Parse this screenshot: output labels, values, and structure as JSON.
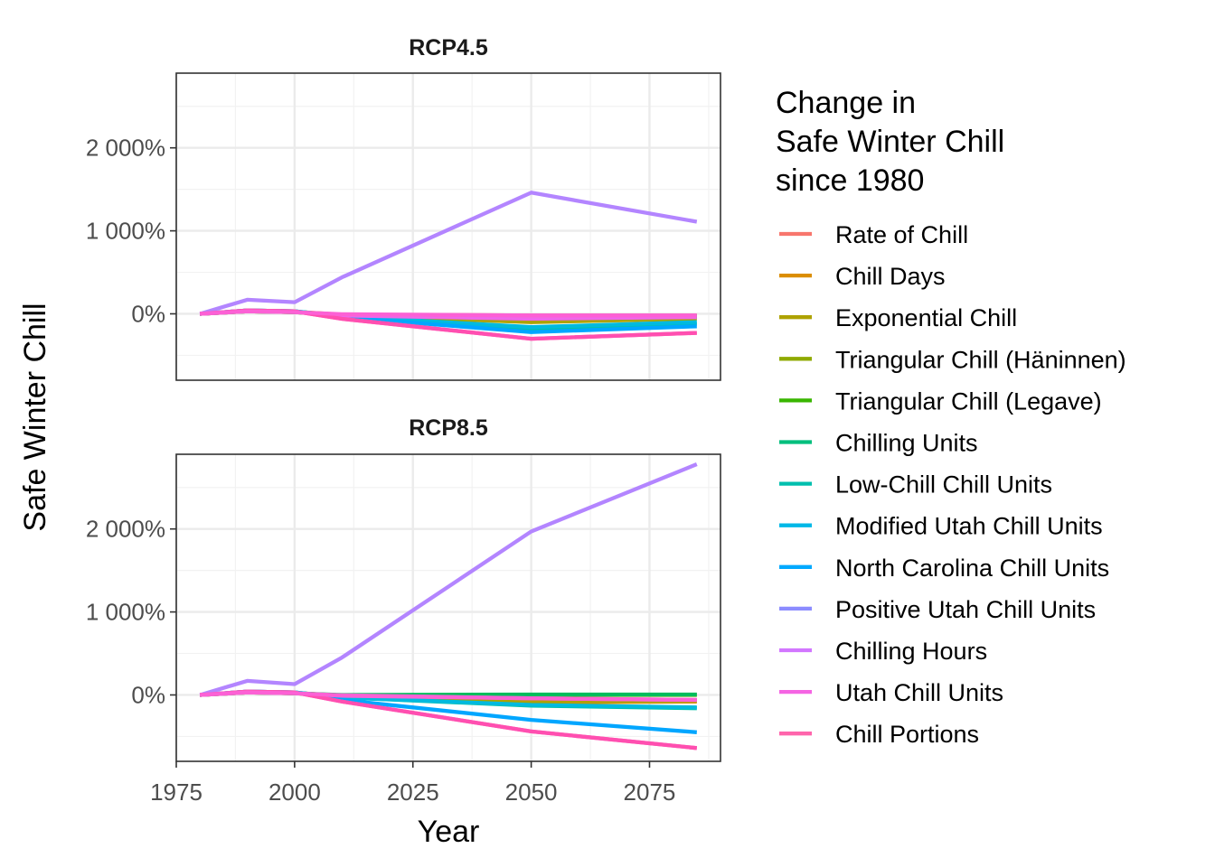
{
  "chart_data": {
    "type": "line",
    "ylabel": "Safe Winter Chill",
    "xlabel": "Year",
    "legend": {
      "title_lines": [
        "Change in",
        "Safe Winter Chill",
        "since 1980"
      ],
      "placement": "right"
    },
    "grid": true,
    "x_ticks": [
      1975,
      2000,
      2025,
      2050,
      2075
    ],
    "x_tick_labels": [
      "1975",
      "2000",
      "2025",
      "2050",
      "2075"
    ],
    "xlim": [
      1975,
      2090
    ],
    "y_ticks": [
      0,
      1000,
      2000
    ],
    "y_tick_labels": [
      "0%",
      "1 000%",
      "2 000%"
    ],
    "ylim": [
      -800,
      2900
    ],
    "x": [
      1980,
      1990,
      2000,
      2010,
      2050,
      2085
    ],
    "series_styles": [
      {
        "name": "Rate of Chill",
        "color": "#F8766D"
      },
      {
        "name": "Chill Days",
        "color": "#DB8E00"
      },
      {
        "name": "Exponential Chill",
        "color": "#AEA200"
      },
      {
        "name": "Triangular Chill (Häninnen)",
        "color": "#64B200"
      },
      {
        "name": "Triangular Chill (Legave)",
        "color": "#00BD5C"
      },
      {
        "name": "Chilling Units",
        "color": "#00C1A7"
      },
      {
        "name": "Low-Chill Chill Units",
        "color": "#00BADE"
      },
      {
        "name": "Modified Utah Chill Units",
        "color": "#00A6FF"
      },
      {
        "name": "North Carolina Chill Units",
        "color": "#B385FF"
      },
      {
        "name": "Positive Utah Chill Units",
        "color": "#EF67EB"
      },
      {
        "name": "Chilling Hours",
        "color": "#FF63B6"
      },
      {
        "name": "Utah Chill Units",
        "color": "#FF4FB0"
      },
      {
        "name": "Chill Portions",
        "color": "#FC61D5"
      }
    ],
    "legend_entries": [
      {
        "name": "Rate of Chill",
        "color": "#F8766D"
      },
      {
        "name": "Chill Days",
        "color": "#DB8E00"
      },
      {
        "name": "Exponential Chill",
        "color": "#AEA200"
      },
      {
        "name": "Triangular Chill (Häninnen)",
        "color": "#8FAA00"
      },
      {
        "name": "Triangular Chill (Legave)",
        "color": "#39B600"
      },
      {
        "name": "Chilling Units",
        "color": "#00BF7D"
      },
      {
        "name": "Low-Chill Chill Units",
        "color": "#00BFAE"
      },
      {
        "name": "Modified Utah Chill Units",
        "color": "#00B8E7"
      },
      {
        "name": "North Carolina Chill Units",
        "color": "#00A9FF"
      },
      {
        "name": "Positive Utah Chill Units",
        "color": "#8C8CFF"
      },
      {
        "name": "Chilling Hours",
        "color": "#D277FF"
      },
      {
        "name": "Utah Chill Units",
        "color": "#F564E3"
      },
      {
        "name": "Chill Portions",
        "color": "#FF65AC"
      }
    ],
    "panels": [
      {
        "label": "RCP4.5",
        "series": [
          {
            "name": "Rate of Chill",
            "values": [
              0,
              30,
              20,
              -10,
              -20,
              -20
            ]
          },
          {
            "name": "Chill Days",
            "values": [
              0,
              35,
              25,
              -10,
              -80,
              -40
            ]
          },
          {
            "name": "Exponential Chill",
            "values": [
              0,
              30,
              20,
              -20,
              -100,
              -60
            ]
          },
          {
            "name": "Triangular Chill (Häninnen)",
            "values": [
              0,
              30,
              20,
              -15,
              -60,
              -40
            ]
          },
          {
            "name": "Triangular Chill (Legave)",
            "values": [
              0,
              30,
              20,
              -15,
              -50,
              -30
            ]
          },
          {
            "name": "Chilling Units",
            "values": [
              0,
              40,
              30,
              -30,
              -180,
              -120
            ]
          },
          {
            "name": "Low-Chill Chill Units",
            "values": [
              0,
              40,
              30,
              -30,
              -160,
              -100
            ]
          },
          {
            "name": "Modified Utah Chill Units",
            "values": [
              0,
              40,
              30,
              -40,
              -220,
              -150
            ]
          },
          {
            "name": "North Carolina Chill Units",
            "values": [
              0,
              170,
              140,
              440,
              1460,
              1110
            ]
          },
          {
            "name": "Positive Utah Chill Units",
            "values": [
              0,
              30,
              20,
              -20,
              -60,
              -40
            ]
          },
          {
            "name": "Chilling Hours",
            "values": [
              0,
              40,
              30,
              -60,
              -300,
              -230
            ]
          },
          {
            "name": "Utah Chill Units",
            "values": [
              0,
              40,
              30,
              -60,
              -300,
              -230
            ]
          },
          {
            "name": "Chill Portions",
            "values": [
              0,
              30,
              20,
              -5,
              -20,
              -20
            ]
          }
        ]
      },
      {
        "label": "RCP8.5",
        "series": [
          {
            "name": "Rate of Chill",
            "values": [
              0,
              30,
              20,
              -10,
              -60,
              -60
            ]
          },
          {
            "name": "Chill Days",
            "values": [
              0,
              35,
              25,
              -10,
              -90,
              -80
            ]
          },
          {
            "name": "Exponential Chill",
            "values": [
              0,
              30,
              20,
              -15,
              -80,
              -70
            ]
          },
          {
            "name": "Triangular Chill (Häninnen)",
            "values": [
              0,
              30,
              20,
              -5,
              0,
              0
            ]
          },
          {
            "name": "Triangular Chill (Legave)",
            "values": [
              0,
              30,
              20,
              0,
              5,
              5
            ]
          },
          {
            "name": "Chilling Units",
            "values": [
              0,
              40,
              30,
              -30,
              -130,
              -160
            ]
          },
          {
            "name": "Low-Chill Chill Units",
            "values": [
              0,
              40,
              30,
              -30,
              -120,
              -150
            ]
          },
          {
            "name": "Modified Utah Chill Units",
            "values": [
              0,
              40,
              30,
              -60,
              -300,
              -450
            ]
          },
          {
            "name": "North Carolina Chill Units",
            "values": [
              0,
              170,
              130,
              450,
              1970,
              2780
            ]
          },
          {
            "name": "Positive Utah Chill Units",
            "values": [
              0,
              30,
              20,
              -10,
              -40,
              -60
            ]
          },
          {
            "name": "Chilling Hours",
            "values": [
              0,
              40,
              30,
              -80,
              -440,
              -640
            ]
          },
          {
            "name": "Utah Chill Units",
            "values": [
              0,
              40,
              30,
              -80,
              -440,
              -640
            ]
          },
          {
            "name": "Chill Portions",
            "values": [
              0,
              30,
              20,
              -5,
              -40,
              -60
            ]
          }
        ]
      }
    ]
  }
}
